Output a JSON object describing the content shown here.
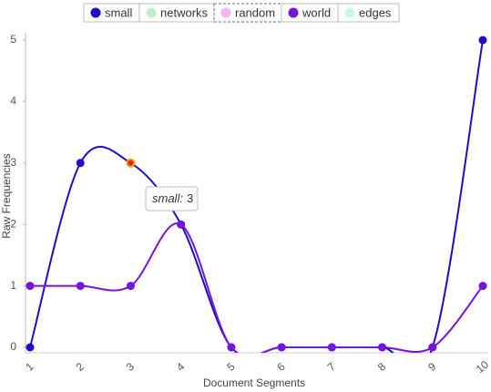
{
  "chart_data": {
    "type": "line",
    "x_label": "Document Segments",
    "y_label": "Raw Frequencies",
    "categories": [
      "1",
      "2",
      "3",
      "4",
      "5",
      "6",
      "7",
      "8",
      "9",
      "10"
    ],
    "ylim": [
      0,
      5
    ],
    "yticks": [
      0,
      1,
      2,
      3,
      4,
      5
    ],
    "series": [
      {
        "name": "small",
        "color": "#1f0cc4",
        "values": [
          0,
          3,
          3,
          2,
          0,
          0,
          0,
          0,
          0,
          5
        ]
      },
      {
        "name": "networks",
        "color": "#c4ebc4",
        "hidden": true
      },
      {
        "name": "random",
        "color": "#f7b6f2",
        "hidden": true
      },
      {
        "name": "world",
        "color": "#7414dc",
        "values": [
          1,
          1,
          1,
          2,
          0,
          0,
          0,
          0,
          0,
          1
        ]
      },
      {
        "name": "edges",
        "color": "#c9f4f6",
        "hidden": true
      }
    ],
    "tooltip": {
      "name": "small:",
      "value": 3
    }
  }
}
